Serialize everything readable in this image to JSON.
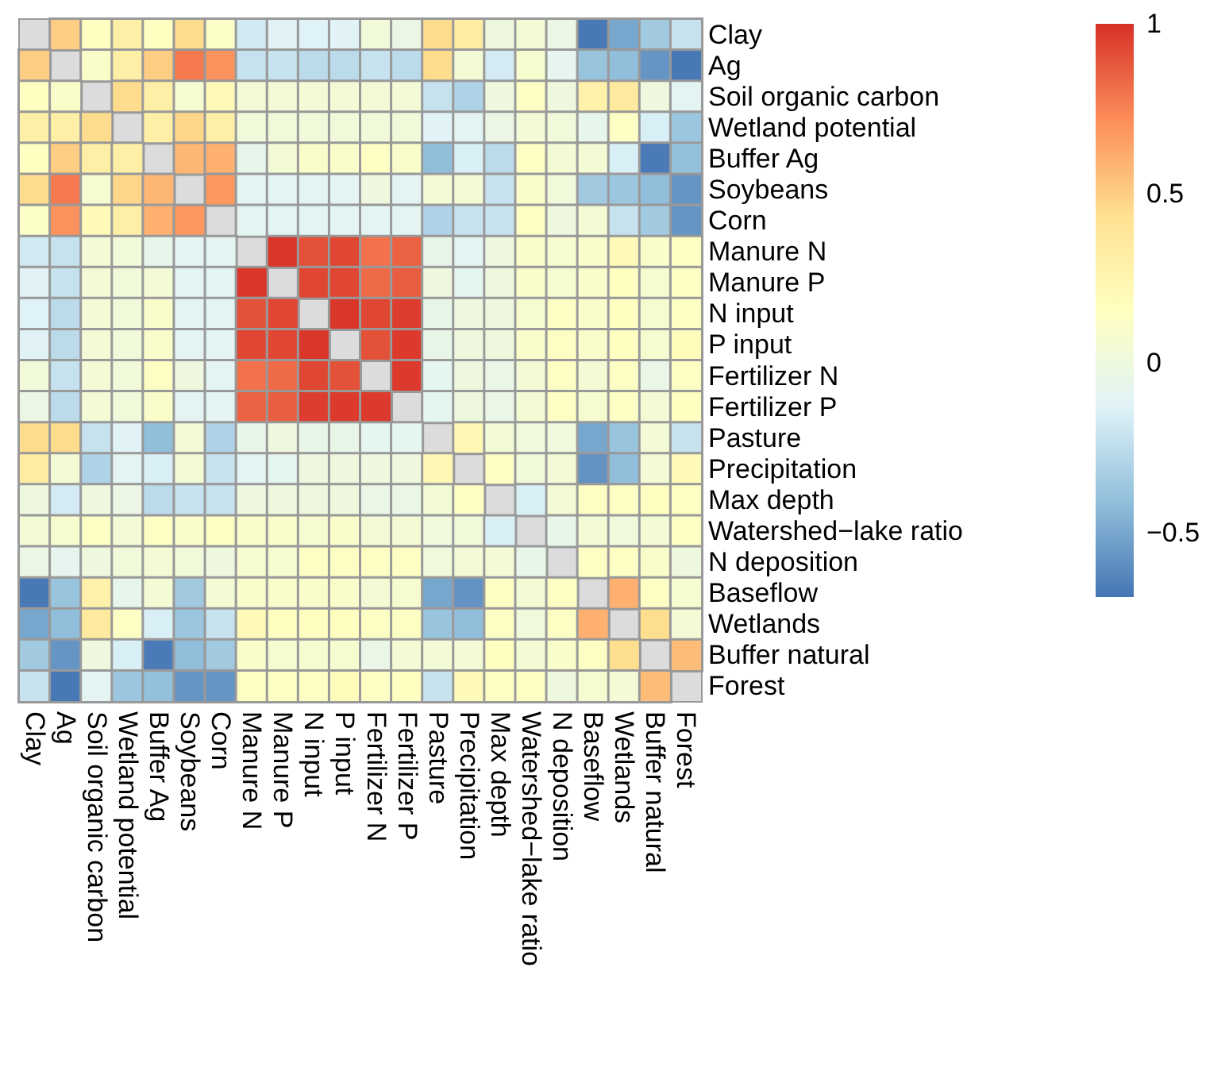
{
  "chart_data": {
    "type": "heatmap",
    "categories": [
      "Clay",
      "Ag",
      "Soil organic carbon",
      "Wetland potential",
      "Buffer Ag",
      "Soybeans",
      "Corn",
      "Manure N",
      "Manure P",
      "N input",
      "P input",
      "Fertilizer N",
      "Fertilizer P",
      "Pasture",
      "Precipitation",
      "Max depth",
      "Watershed−lake ratio",
      "N deposition",
      "Baseflow",
      "Wetlands",
      "Buffer natural",
      "Forest"
    ],
    "y_categories": [
      "Clay",
      "Ag",
      "Soil organic carbon",
      "Wetland potential",
      "Buffer Ag",
      "Soybeans",
      "Corn",
      "Manure N",
      "Manure P",
      "N input",
      "P input",
      "Fertilizer N",
      "Fertilizer P",
      "Pasture",
      "Precipitation",
      "Max depth",
      "Watershed−lake ratio",
      "N deposition",
      "Baseflow",
      "Wetlands",
      "Buffer natural",
      "Forest"
    ],
    "cells": [
      [
        null,
        0.5,
        0.15,
        0.3,
        0.15,
        0.45,
        0.12,
        -0.18,
        -0.12,
        -0.13,
        -0.12,
        0.03,
        -0.03,
        0.45,
        0.33,
        0,
        0.05,
        -0.03,
        -0.68,
        -0.5,
        -0.35,
        -0.22
      ],
      [
        0.5,
        null,
        0.1,
        0.3,
        0.5,
        0.78,
        0.7,
        -0.22,
        -0.22,
        -0.26,
        -0.26,
        -0.22,
        -0.26,
        0.45,
        0.05,
        -0.17,
        0.08,
        -0.07,
        -0.38,
        -0.41,
        -0.57,
        -0.68
      ],
      [
        0.15,
        0.1,
        null,
        0.45,
        0.3,
        0.07,
        0.2,
        0.04,
        0.04,
        0.04,
        0.04,
        0.04,
        0.04,
        -0.22,
        -0.3,
        0,
        0.13,
        0,
        0.28,
        0.35,
        0,
        -0.1
      ],
      [
        0.3,
        0.3,
        0.45,
        null,
        0.3,
        0.47,
        0.3,
        0.02,
        0.02,
        0.02,
        0.02,
        0.02,
        0.02,
        -0.12,
        -0.1,
        -0.03,
        0.04,
        0.02,
        -0.06,
        0.13,
        -0.15,
        -0.37
      ],
      [
        0.15,
        0.5,
        0.3,
        0.3,
        null,
        0.58,
        0.6,
        -0.06,
        0.05,
        0.1,
        0.1,
        0.13,
        0.1,
        -0.41,
        -0.15,
        -0.26,
        0.13,
        0.05,
        0.05,
        -0.15,
        -0.67,
        -0.4
      ],
      [
        0.45,
        0.78,
        0.07,
        0.47,
        0.58,
        null,
        0.68,
        -0.1,
        -0.1,
        -0.1,
        -0.1,
        0,
        -0.1,
        0.04,
        0.05,
        -0.22,
        0.1,
        0.02,
        -0.35,
        -0.37,
        -0.41,
        -0.57
      ],
      [
        0.12,
        0.7,
        0.2,
        0.3,
        0.6,
        0.68,
        null,
        -0.1,
        -0.1,
        -0.1,
        -0.1,
        -0.1,
        -0.1,
        -0.3,
        -0.22,
        -0.22,
        0.13,
        0,
        0.05,
        -0.22,
        -0.35,
        -0.57
      ],
      [
        -0.18,
        -0.22,
        0.04,
        0.02,
        -0.06,
        -0.1,
        -0.1,
        null,
        0.98,
        0.9,
        0.93,
        0.8,
        0.85,
        -0.05,
        -0.1,
        0,
        0.1,
        0.07,
        0.1,
        0.2,
        0.1,
        0.13
      ],
      [
        -0.12,
        -0.22,
        0.04,
        0.02,
        0.05,
        -0.1,
        -0.1,
        0.98,
        null,
        0.93,
        0.93,
        0.82,
        0.86,
        0,
        -0.08,
        0,
        0.1,
        0.07,
        0.1,
        0.15,
        0.07,
        0.13
      ],
      [
        -0.13,
        -0.26,
        0.04,
        0.02,
        0.1,
        -0.1,
        -0.1,
        0.9,
        0.93,
        null,
        0.98,
        0.93,
        0.96,
        -0.05,
        0,
        0,
        0.07,
        0.13,
        0.1,
        0.15,
        0.07,
        0.13
      ],
      [
        -0.12,
        -0.26,
        0.04,
        0.02,
        0.1,
        -0.1,
        -0.1,
        0.93,
        0.93,
        0.98,
        null,
        0.9,
        0.97,
        -0.05,
        0,
        0,
        0.1,
        0.13,
        0.1,
        0.15,
        0.07,
        0.18
      ],
      [
        0.03,
        -0.22,
        0.04,
        0.02,
        0.13,
        0,
        -0.1,
        0.8,
        0.82,
        0.93,
        0.9,
        null,
        0.97,
        -0.08,
        0,
        -0.04,
        0.04,
        0.13,
        0.05,
        0.13,
        -0.04,
        0.13
      ],
      [
        -0.03,
        -0.26,
        0.04,
        0.02,
        0.1,
        -0.1,
        -0.1,
        0.85,
        0.86,
        0.96,
        0.97,
        0.97,
        null,
        -0.08,
        0,
        -0.04,
        0.05,
        0.13,
        0.07,
        0.13,
        0.05,
        0.15
      ],
      [
        0.45,
        0.45,
        -0.22,
        -0.12,
        -0.41,
        0.04,
        -0.3,
        -0.05,
        0,
        -0.05,
        -0.05,
        -0.08,
        -0.08,
        null,
        0.22,
        0.04,
        0.01,
        0.01,
        -0.5,
        -0.38,
        0.04,
        -0.22
      ],
      [
        0.33,
        0.05,
        -0.3,
        -0.1,
        -0.15,
        0.05,
        -0.22,
        -0.1,
        -0.08,
        0,
        0,
        0,
        0,
        0.22,
        null,
        0.13,
        0.02,
        0.04,
        -0.58,
        -0.41,
        0.04,
        0.2
      ],
      [
        0,
        -0.17,
        0,
        -0.03,
        -0.26,
        -0.22,
        -0.22,
        0,
        0,
        0,
        0,
        -0.04,
        -0.04,
        0.04,
        0.13,
        null,
        -0.15,
        0.05,
        0.13,
        0.13,
        0.15,
        0.13
      ],
      [
        0.05,
        0.08,
        0.13,
        0.04,
        0.13,
        0.1,
        0.13,
        0.1,
        0.1,
        0.07,
        0.1,
        0.04,
        0.05,
        0.01,
        0.02,
        -0.15,
        null,
        -0.05,
        0.05,
        0.01,
        0.05,
        0.13
      ],
      [
        -0.03,
        -0.07,
        0,
        0.02,
        0.05,
        0.02,
        0,
        0.07,
        0.07,
        0.13,
        0.13,
        0.13,
        0.13,
        0.01,
        0.04,
        0.05,
        -0.05,
        null,
        0.13,
        0.13,
        0.1,
        0
      ],
      [
        -0.68,
        -0.38,
        0.28,
        -0.06,
        0.05,
        -0.35,
        0.05,
        0.1,
        0.1,
        0.1,
        0.1,
        0.05,
        0.07,
        -0.5,
        -0.58,
        0.13,
        0.05,
        0.13,
        null,
        0.6,
        0.13,
        0.07
      ],
      [
        -0.5,
        -0.41,
        0.35,
        0.13,
        -0.15,
        -0.37,
        -0.22,
        0.2,
        0.15,
        0.15,
        0.15,
        0.13,
        0.13,
        -0.38,
        -0.41,
        0.13,
        0.01,
        0.13,
        0.6,
        null,
        0.44,
        0.05
      ],
      [
        -0.35,
        -0.57,
        0,
        -0.15,
        -0.67,
        -0.41,
        -0.35,
        0.1,
        0.07,
        0.07,
        0.07,
        -0.04,
        0.05,
        0.04,
        0.04,
        0.15,
        0.05,
        0.1,
        0.13,
        0.44,
        null,
        0.56
      ],
      [
        -0.22,
        -0.68,
        -0.1,
        -0.37,
        -0.4,
        -0.57,
        -0.57,
        0.13,
        0.13,
        0.13,
        0.18,
        0.13,
        0.15,
        -0.22,
        0.2,
        0.13,
        0.13,
        0,
        0.07,
        0.05,
        0.56,
        null
      ]
    ],
    "clim": [
      -0.69,
      1
    ],
    "cticks": [
      -0.5,
      0,
      0.5,
      1
    ]
  }
}
